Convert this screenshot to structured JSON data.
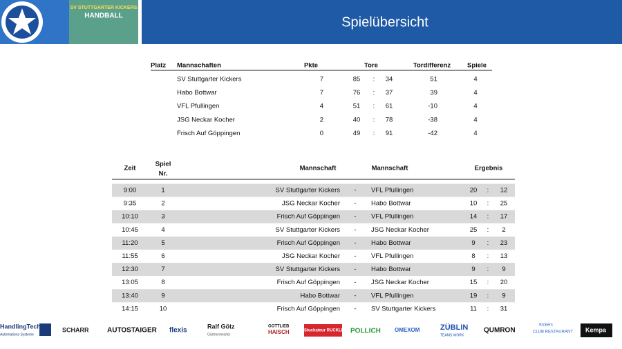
{
  "header": {
    "logo_line1": "SV STUTTGARTER KICKERS",
    "logo_line2": "HANDBALL",
    "title": "Spielübersicht"
  },
  "standings": {
    "columns": [
      "Platz",
      "Mannschaften",
      "Pkte",
      "Tore",
      "Tordifferenz",
      "Spiele"
    ],
    "separator": ":",
    "rows": [
      [
        "SV Stuttgarter Kickers",
        7,
        85,
        34,
        51,
        4
      ],
      [
        "Habo Bottwar",
        7,
        76,
        37,
        39,
        4
      ],
      [
        "VFL Pfullingen",
        4,
        51,
        61,
        -10,
        4
      ],
      [
        "JSG Neckar Kocher",
        2,
        40,
        78,
        -38,
        4
      ],
      [
        "Frisch Auf Göppingen",
        0,
        49,
        91,
        -42,
        4
      ]
    ]
  },
  "games": {
    "columns": [
      "Zeit",
      "Spiel",
      "Nr.",
      "Mannschaft",
      "Mannschaft",
      "Ergebnis"
    ],
    "dash": "-",
    "colon": ":",
    "rows": [
      [
        "9:00",
        1,
        "SV Stuttgarter Kickers",
        "VFL Pfullingen",
        20,
        12
      ],
      [
        "9:35",
        2,
        "JSG Neckar Kocher",
        "Habo Bottwar",
        10,
        25
      ],
      [
        "10:10",
        3,
        "Frisch Auf Göppingen",
        "VFL Pfullingen",
        14,
        17
      ],
      [
        "10:45",
        4,
        "SV Stuttgarter Kickers",
        "JSG Neckar Kocher",
        25,
        2
      ],
      [
        "11:20",
        5,
        "Frisch Auf Göppingen",
        "Habo Bottwar",
        9,
        23
      ],
      [
        "11:55",
        6,
        "JSG Neckar Kocher",
        "VFL Pfullingen",
        8,
        13
      ],
      [
        "12:30",
        7,
        "SV Stuttgarter Kickers",
        "Habo Bottwar",
        9,
        9
      ],
      [
        "13:05",
        8,
        "Frisch Auf Göppingen",
        "JSG Neckar Kocher",
        15,
        20
      ],
      [
        "13:40",
        9,
        "Habo Bottwar",
        "VFL Pfullingen",
        19,
        9
      ],
      [
        "14:15",
        10,
        "Frisch Auf Göppingen",
        "SV Stuttgarter Kickers",
        11,
        31
      ]
    ]
  },
  "sponsors": [
    "HandlingTech",
    "Automations-Systeme",
    "SCHARR",
    "AUTOSTAIGER",
    "flexis",
    "Ralf Götz",
    "Gärtnermeister",
    "GOTTLIEB",
    "HAISCH",
    "Stuckateur RUCKLE",
    "POLLICH",
    "OMEXOM",
    "ZÜBLIN",
    "TEAMS WORK",
    "QUMRON",
    "Kickers",
    "CLUB RESTAURANT",
    "Kempa"
  ]
}
